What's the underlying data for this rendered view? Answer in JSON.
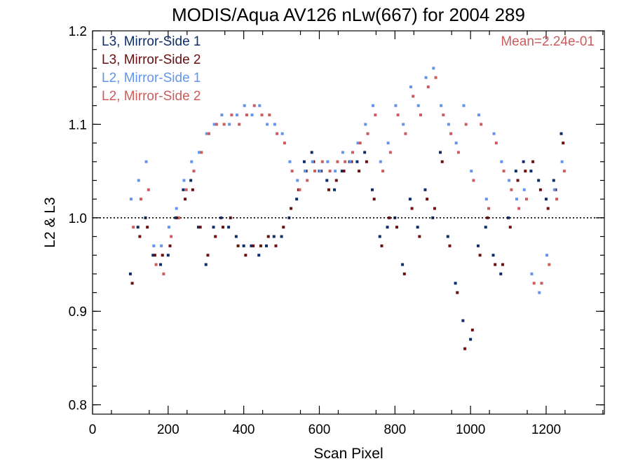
{
  "chart_data": {
    "type": "scatter",
    "title": "MODIS/Aqua AV126 nLw(667) for 2004 289",
    "xlabel": "Scan Pixel",
    "ylabel": "L2 & L3",
    "xlim": [
      0,
      1354
    ],
    "ylim": [
      0.79,
      1.2
    ],
    "x_ticks": [
      0,
      200,
      400,
      600,
      800,
      1000,
      1200
    ],
    "y_ticks": [
      0.8,
      0.9,
      1.0,
      1.1,
      1.2
    ],
    "x_tick_labels": [
      "0",
      "200",
      "400",
      "600",
      "800",
      "1000",
      "1200"
    ],
    "y_tick_labels": [
      "0.8",
      "0.9",
      "1.0",
      "1.1",
      "1.2"
    ],
    "reference_line_y": 1.0,
    "annotation": "Mean=2.24e-01",
    "grid": false,
    "legend_position": "top-left",
    "series": [
      {
        "name": "L3, Mirror-Side 1",
        "color": "#0d2e6b",
        "x": [
          100,
          120,
          140,
          160,
          180,
          200,
          220,
          240,
          260,
          280,
          300,
          320,
          340,
          360,
          380,
          400,
          420,
          440,
          460,
          480,
          500,
          520,
          540,
          560,
          580,
          600,
          620,
          640,
          660,
          680,
          700,
          720,
          740,
          760,
          780,
          800,
          820,
          840,
          860,
          880,
          900,
          920,
          940,
          960,
          980,
          1000,
          1020,
          1040,
          1060,
          1080,
          1100,
          1120,
          1140,
          1160,
          1180,
          1200,
          1220,
          1240
        ],
        "y": [
          0.94,
          0.99,
          1.0,
          0.96,
          0.95,
          0.96,
          1.0,
          1.03,
          1.04,
          0.99,
          0.95,
          0.99,
          1.0,
          0.99,
          0.98,
          0.97,
          0.97,
          0.96,
          0.97,
          0.98,
          0.98,
          1.0,
          1.02,
          1.06,
          1.07,
          1.05,
          1.04,
          1.03,
          1.05,
          1.06,
          1.06,
          1.07,
          1.03,
          0.98,
          0.99,
          1.0,
          0.95,
          1.02,
          0.99,
          1.03,
          1.0,
          1.07,
          0.98,
          0.93,
          0.89,
          0.87,
          0.97,
          0.99,
          0.96,
          0.94,
          1.0,
          1.05,
          1.06,
          1.05,
          1.04,
          1.02,
          1.04,
          1.09
        ]
      },
      {
        "name": "L3, Mirror-Side 2",
        "color": "#6b0f0f",
        "x": [
          105,
          125,
          145,
          165,
          185,
          205,
          225,
          245,
          265,
          285,
          305,
          325,
          345,
          365,
          385,
          405,
          425,
          445,
          465,
          485,
          505,
          525,
          545,
          565,
          585,
          605,
          625,
          645,
          665,
          685,
          705,
          725,
          745,
          765,
          785,
          805,
          825,
          845,
          865,
          885,
          905,
          925,
          945,
          965,
          985,
          1005,
          1025,
          1045,
          1065,
          1085,
          1105,
          1125,
          1145,
          1165,
          1185,
          1205,
          1225,
          1245
        ],
        "y": [
          0.93,
          0.98,
          0.99,
          0.96,
          0.96,
          0.97,
          1.0,
          1.02,
          1.03,
          0.99,
          0.96,
          0.98,
          0.99,
          1.0,
          0.97,
          0.96,
          0.97,
          0.97,
          0.98,
          0.97,
          0.99,
          1.01,
          1.03,
          1.05,
          1.06,
          1.05,
          1.03,
          1.04,
          1.05,
          1.06,
          1.05,
          1.06,
          1.02,
          0.97,
          1.0,
          0.99,
          0.94,
          1.01,
          0.98,
          1.02,
          1.01,
          1.06,
          0.97,
          0.92,
          0.86,
          0.88,
          0.96,
          1.0,
          0.95,
          0.95,
          0.99,
          1.04,
          1.05,
          1.06,
          1.03,
          1.01,
          1.03,
          1.08
        ]
      },
      {
        "name": "L2, Mirror-Side 1",
        "color": "#6495ed",
        "x": [
          102,
          122,
          142,
          162,
          182,
          202,
          222,
          242,
          262,
          282,
          302,
          322,
          342,
          362,
          382,
          402,
          422,
          442,
          462,
          482,
          502,
          522,
          542,
          562,
          582,
          602,
          622,
          642,
          662,
          682,
          702,
          722,
          742,
          762,
          782,
          802,
          822,
          842,
          862,
          882,
          902,
          922,
          942,
          962,
          982,
          1002,
          1022,
          1042,
          1062,
          1082,
          1102,
          1122,
          1142,
          1162,
          1182,
          1202,
          1222,
          1242
        ],
        "y": [
          1.02,
          1.04,
          1.06,
          0.97,
          0.97,
          0.99,
          1.01,
          1.04,
          1.06,
          1.07,
          1.09,
          1.1,
          1.11,
          1.1,
          1.11,
          1.12,
          1.11,
          1.12,
          1.1,
          1.1,
          1.09,
          1.06,
          1.04,
          1.05,
          1.06,
          1.05,
          1.06,
          1.05,
          1.07,
          1.06,
          1.08,
          1.1,
          1.12,
          1.06,
          1.08,
          1.12,
          1.1,
          1.14,
          1.12,
          1.15,
          1.16,
          1.12,
          1.1,
          1.08,
          1.12,
          1.05,
          1.11,
          1.02,
          1.09,
          1.06,
          1.04,
          1.02,
          1.03,
          0.94,
          0.92,
          0.96,
          1.03,
          1.06
        ]
      },
      {
        "name": "L2, Mirror-Side 2",
        "color": "#cd5c5c",
        "x": [
          108,
          128,
          148,
          168,
          188,
          208,
          228,
          248,
          268,
          288,
          308,
          328,
          348,
          368,
          388,
          408,
          428,
          448,
          468,
          488,
          508,
          528,
          548,
          568,
          588,
          608,
          628,
          648,
          668,
          688,
          708,
          728,
          748,
          768,
          788,
          808,
          828,
          848,
          868,
          888,
          908,
          928,
          948,
          968,
          988,
          1008,
          1028,
          1048,
          1068,
          1088,
          1108,
          1128,
          1148,
          1168,
          1188,
          1208,
          1228,
          1248
        ],
        "y": [
          0.99,
          1.02,
          1.03,
          0.95,
          0.94,
          0.98,
          1.0,
          1.03,
          1.05,
          1.07,
          1.09,
          1.1,
          1.1,
          1.11,
          1.1,
          1.11,
          1.12,
          1.11,
          1.11,
          1.09,
          1.08,
          1.05,
          1.03,
          1.04,
          1.05,
          1.06,
          1.05,
          1.06,
          1.06,
          1.07,
          1.08,
          1.09,
          1.11,
          1.05,
          1.07,
          1.11,
          1.09,
          1.13,
          1.11,
          1.14,
          1.15,
          1.11,
          1.09,
          1.07,
          1.1,
          1.04,
          1.1,
          1.01,
          1.08,
          1.05,
          1.03,
          1.01,
          1.02,
          0.93,
          0.93,
          0.95,
          1.02,
          1.05
        ]
      }
    ]
  }
}
